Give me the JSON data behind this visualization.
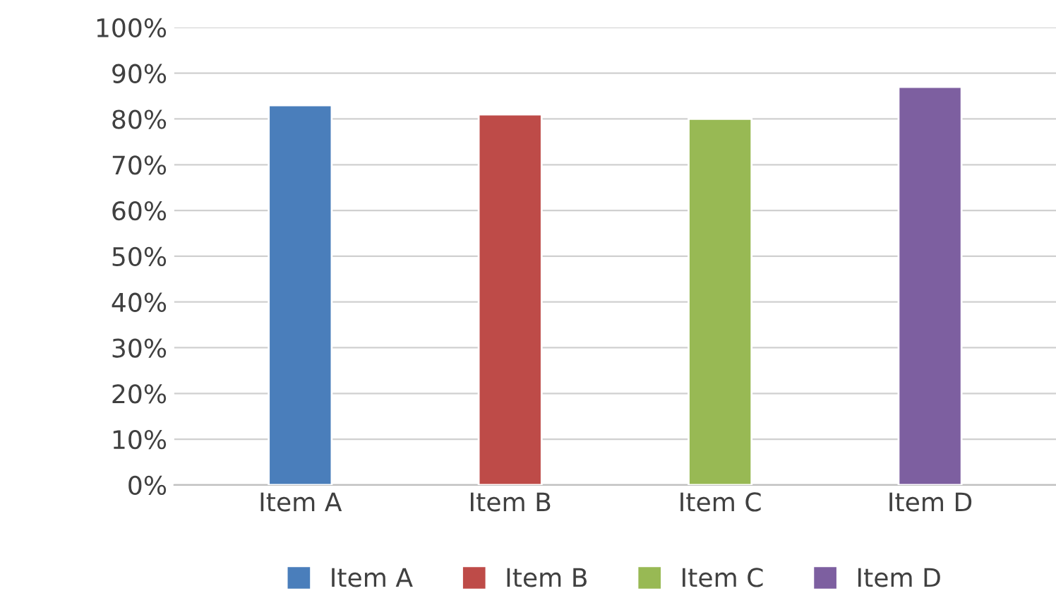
{
  "chart_data": {
    "type": "bar",
    "categories": [
      "Item A",
      "Item B",
      "Item C",
      "Item D"
    ],
    "series": [
      {
        "name": "Item A",
        "color": "#4a7ebb",
        "values": [
          83,
          null,
          null,
          null
        ]
      },
      {
        "name": "Item B",
        "color": "#be4b48",
        "values": [
          null,
          81,
          null,
          null
        ]
      },
      {
        "name": "Item C",
        "color": "#98b954",
        "values": [
          null,
          null,
          80,
          null
        ]
      },
      {
        "name": "Item D",
        "color": "#7d5fa0",
        "values": [
          null,
          null,
          null,
          87
        ]
      }
    ],
    "ylim": [
      0,
      100
    ],
    "yticks": [
      {
        "value": 0,
        "label": "0%"
      },
      {
        "value": 10,
        "label": "10%"
      },
      {
        "value": 20,
        "label": "20%"
      },
      {
        "value": 30,
        "label": "30%"
      },
      {
        "value": 40,
        "label": "40%"
      },
      {
        "value": 50,
        "label": "50%"
      },
      {
        "value": 60,
        "label": "60%"
      },
      {
        "value": 70,
        "label": "70%"
      },
      {
        "value": 80,
        "label": "80%"
      },
      {
        "value": 90,
        "label": "90%"
      },
      {
        "value": 100,
        "label": "100%"
      }
    ],
    "grid": "y",
    "legend": "bottom"
  }
}
